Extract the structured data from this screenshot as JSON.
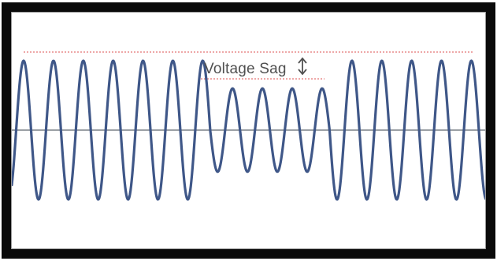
{
  "annotation": {
    "label": "Voltage Sag",
    "arrow_icon": "double-headed-vertical-arrow-icon"
  },
  "colors": {
    "waveform": "#3f5788",
    "axis": "#7a8087",
    "reference": "#e98c8c",
    "label": "#505050",
    "frame": "#0a0a0a"
  },
  "waveform": {
    "normal_amplitude": 1.0,
    "sag_amplitude": 0.6,
    "cycles_before_sag": 6,
    "cycles_during_sag": 4,
    "cycles_after_sag": 5
  }
}
